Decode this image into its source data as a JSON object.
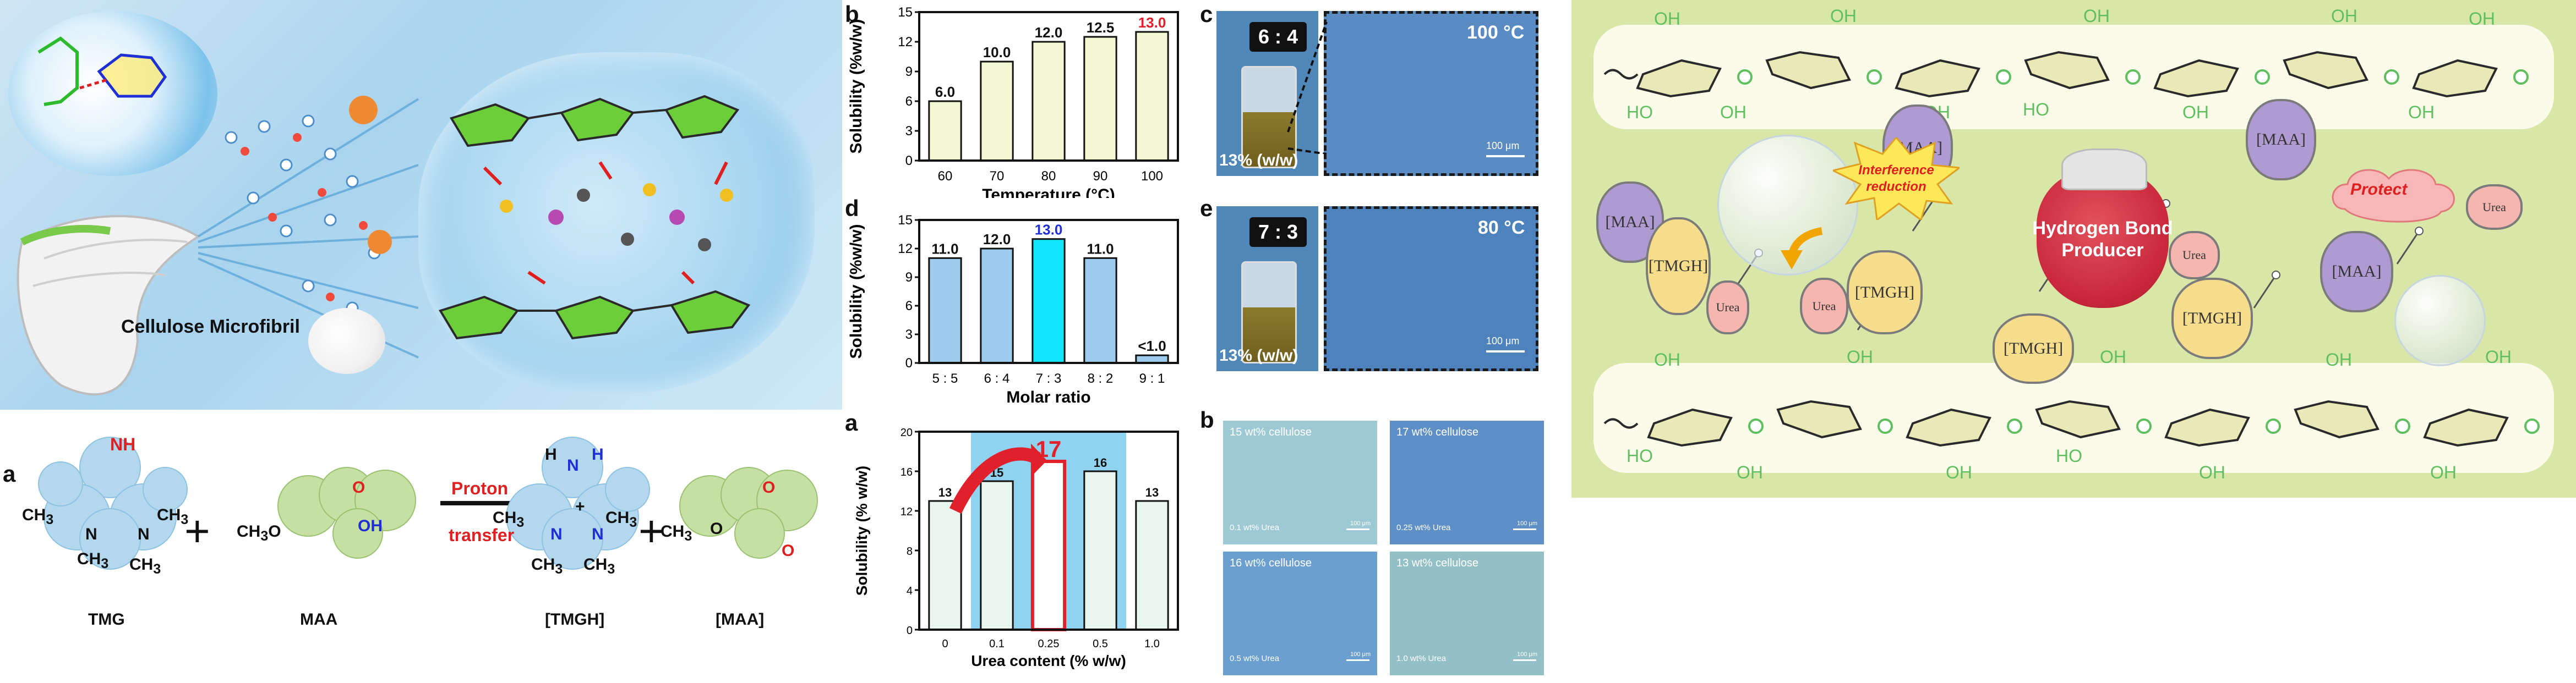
{
  "schematic": {
    "microfibril_label": "Cellulose Microfibril",
    "colors": {
      "background": "#bfdff1",
      "cellulose_ring": "#6ccf3a",
      "bond": "#e02020"
    }
  },
  "reaction": {
    "letter": "a",
    "tmg_label": "TMG",
    "maa_label": "MAA",
    "arrow_label_1": "Proton",
    "arrow_label_2": "transfer",
    "tmgh_label": "[TMGH]",
    "maa_ion_label": "[MAA]",
    "plus": "+",
    "ch3": "CH",
    "sub3": "3",
    "nh": "NH",
    "n": "N",
    "h": "H",
    "oh": "OH",
    "o": "O",
    "ch3o": "CH",
    "plus_charge": "+"
  },
  "chart_b": {
    "letter": "b",
    "chart_data": {
      "type": "bar",
      "categories": [
        "60",
        "70",
        "80",
        "90",
        "100"
      ],
      "values": [
        6.0,
        10.0,
        12.0,
        12.5,
        13.0
      ],
      "value_labels": [
        "6.0",
        "10.0",
        "12.0",
        "12.5",
        "13.0"
      ],
      "xlabel": "Temperature (°C)",
      "ylabel": "Solubility (%w/w)",
      "ylim": [
        0,
        15
      ],
      "yticks": [
        "0",
        "3",
        "6",
        "9",
        "12",
        "15"
      ],
      "bar_color": "#f3f8d2",
      "highlight_index": 4,
      "highlight_label_color": "#e0202a"
    }
  },
  "chart_d": {
    "letter": "d",
    "chart_data": {
      "type": "bar",
      "categories": [
        "5 : 5",
        "6 : 4",
        "7 : 3",
        "8 : 2",
        "9 : 1"
      ],
      "values": [
        11.0,
        12.0,
        13.0,
        11.0,
        0.8
      ],
      "value_labels": [
        "11.0",
        "12.0",
        "13.0",
        "11.0",
        "<1.0"
      ],
      "xlabel": "Molar ratio",
      "ylabel": "Solubility (%w/w)",
      "ylim": [
        0,
        15
      ],
      "yticks": [
        "0",
        "3",
        "6",
        "9",
        "12",
        "15"
      ],
      "bar_color": "#9ccbec",
      "highlight_index": 2,
      "highlight_color": "#11e5ff",
      "highlight_label_color": "#1f2fd6"
    }
  },
  "chart_a2": {
    "letter": "a",
    "chart_data": {
      "type": "bar",
      "categories": [
        "0",
        "0.1",
        "0.25",
        "0.5",
        "1.0"
      ],
      "values": [
        13,
        15,
        17,
        16,
        13
      ],
      "value_labels": [
        "13",
        "15",
        "17",
        "16",
        "13"
      ],
      "xlabel": "Urea content (% w/w)",
      "ylabel": "Solubility (% w/w)",
      "ylim": [
        0,
        20
      ],
      "yticks": [
        "0",
        "4",
        "8",
        "12",
        "16",
        "20"
      ],
      "bar_color": "#e9f6ef",
      "shade_color": "#8fd3f0",
      "highlight_index": 2,
      "highlight_color": "#e0202a"
    }
  },
  "micro_c": {
    "letter": "c",
    "ratio": "6 : 4",
    "temperature": "100 °C",
    "concentration": "13% (w/w)",
    "scale": "100 μm"
  },
  "micro_e": {
    "letter": "e",
    "ratio": "7 : 3",
    "temperature": "80 °C",
    "concentration": "13% (w/w)",
    "scale": "100 μm"
  },
  "micro_b2": {
    "letter": "b",
    "tiles": [
      {
        "cellulose": "15 wt% cellulose",
        "urea": "0.1 wt% Urea",
        "scale": "100 μm",
        "color": "#9dc9d4"
      },
      {
        "cellulose": "17 wt% cellulose",
        "urea": "0.25 wt% Urea",
        "scale": "100 μm",
        "color": "#5e8fc6"
      },
      {
        "cellulose": "16 wt% cellulose",
        "urea": "0.5 wt% Urea",
        "scale": "100 μm",
        "color": "#6b9fd0"
      },
      {
        "cellulose": "13 wt% cellulose",
        "urea": "1.0 wt% Urea",
        "scale": "100 μm",
        "color": "#93bfc7"
      }
    ]
  },
  "mechanism": {
    "oh": "OH",
    "ho": "HO",
    "maa": "[MAA]",
    "tmgh": "[TMGH]",
    "urea": "Urea",
    "interference_1": "Interference",
    "interference_2": "reduction",
    "protect": "Protect",
    "producer_1": "Hydrogen Bond",
    "producer_2": "Producer",
    "colors": {
      "background": "#d8e7a8",
      "band": "#fbfbe9",
      "ring": "#e9e9b7",
      "hydroxyl": "#5fbf5f",
      "maa": "#b09ad2",
      "tmgh": "#f6dd8c",
      "urea": "#f6b6b0",
      "bag": "#c7263a"
    }
  }
}
